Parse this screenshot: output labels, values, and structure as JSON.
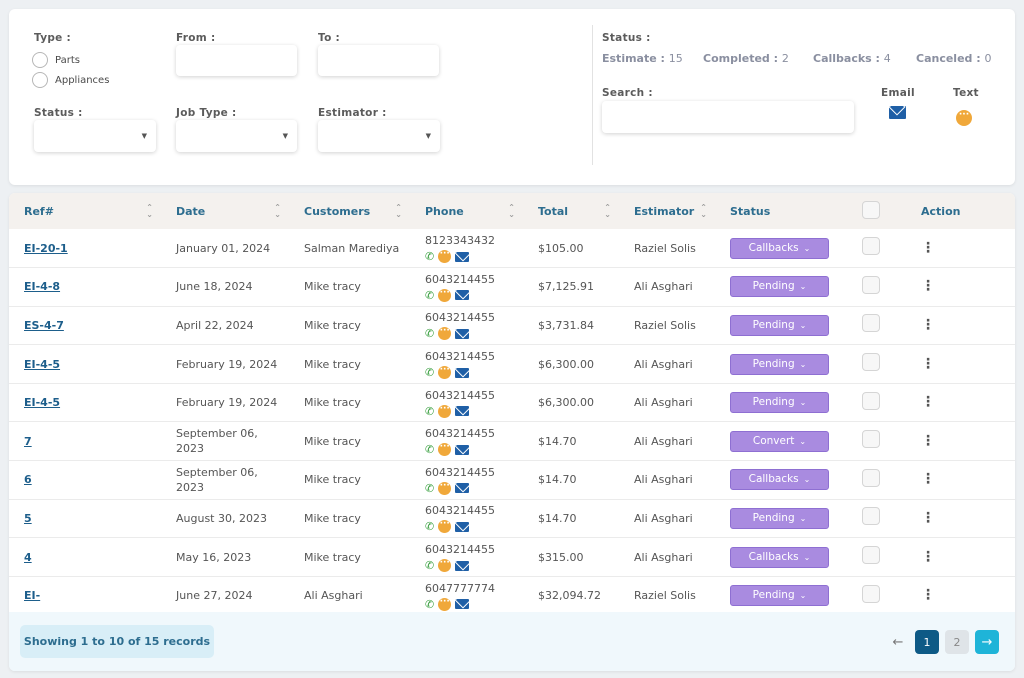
{
  "filters": {
    "type_label": "Type :",
    "type_options": [
      "Parts",
      "Appliances"
    ],
    "from_label": "From :",
    "to_label": "To :",
    "status_label": "Status :",
    "job_type_label": "Job Type :",
    "estimator_label": "Estimator :",
    "caret": "▼"
  },
  "summary": {
    "status_label": "Status :",
    "estimate_label": "Estimate :",
    "estimate_count": "15",
    "completed_label": "Completed :",
    "completed_count": "2",
    "callbacks_label": "Callbacks :",
    "callbacks_count": "4",
    "canceled_label": "Canceled :",
    "canceled_count": "0",
    "search_label": "Search :",
    "email_label": "Email",
    "text_label": "Text"
  },
  "table": {
    "headers": [
      "Ref#",
      "Date",
      "Customers",
      "Phone",
      "Total",
      "Estimator",
      "Status",
      "",
      "Action"
    ],
    "rows": [
      {
        "ref": "EI-20-1",
        "date": "January 01, 2024",
        "customer": "Salman Marediya",
        "phone": "8123343432",
        "total": "$105.00",
        "estimator": "Raziel Solis",
        "status": "Callbacks"
      },
      {
        "ref": "EI-4-8",
        "date": "June 18, 2024",
        "customer": "Mike tracy",
        "phone": "6043214455",
        "total": "$7,125.91",
        "estimator": "Ali Asghari",
        "status": "Pending"
      },
      {
        "ref": "ES-4-7",
        "date": "April 22, 2024",
        "customer": "Mike tracy",
        "phone": "6043214455",
        "total": "$3,731.84",
        "estimator": "Raziel Solis",
        "status": "Pending"
      },
      {
        "ref": "EI-4-5",
        "date": "February 19, 2024",
        "customer": "Mike tracy",
        "phone": "6043214455",
        "total": "$6,300.00",
        "estimator": "Ali Asghari",
        "status": "Pending"
      },
      {
        "ref": "EI-4-5",
        "date": "February 19, 2024",
        "customer": "Mike tracy",
        "phone": "6043214455",
        "total": "$6,300.00",
        "estimator": "Ali Asghari",
        "status": "Pending"
      },
      {
        "ref": "7",
        "date": "September 06, 2023",
        "customer": "Mike tracy",
        "phone": "6043214455",
        "total": "$14.70",
        "estimator": "Ali Asghari",
        "status": "Convert"
      },
      {
        "ref": "6",
        "date": "September 06, 2023",
        "customer": "Mike tracy",
        "phone": "6043214455",
        "total": "$14.70",
        "estimator": "Ali Asghari",
        "status": "Callbacks"
      },
      {
        "ref": "5",
        "date": "August 30, 2023",
        "customer": "Mike tracy",
        "phone": "6043214455",
        "total": "$14.70",
        "estimator": "Ali Asghari",
        "status": "Pending"
      },
      {
        "ref": "4",
        "date": "May 16, 2023",
        "customer": "Mike tracy",
        "phone": "6043214455",
        "total": "$315.00",
        "estimator": "Ali Asghari",
        "status": "Callbacks"
      },
      {
        "ref": "EI-",
        "date": "June 27, 2024",
        "customer": "Ali Asghari",
        "phone": "6047777774",
        "total": "$32,094.72",
        "estimator": "Raziel Solis",
        "status": "Pending"
      }
    ]
  },
  "pagination": {
    "showing_text": "Showing 1 to 10 of 15 records",
    "prev": "←",
    "pages": [
      "1",
      "2"
    ],
    "current_page": "1",
    "next": "→"
  },
  "colors": {
    "header_text": "#2d6d8f",
    "status_button": "#a98be0",
    "email_icon": "#1f5fa6",
    "text_icon": "#f0a83a",
    "active_page": "#0e5a86",
    "next_button": "#1fb4d8"
  },
  "icons": {
    "phone": "phone-icon",
    "message": "message-icon",
    "email": "email-icon",
    "sort": "sort-icon",
    "kebab": "kebab-menu-icon"
  }
}
